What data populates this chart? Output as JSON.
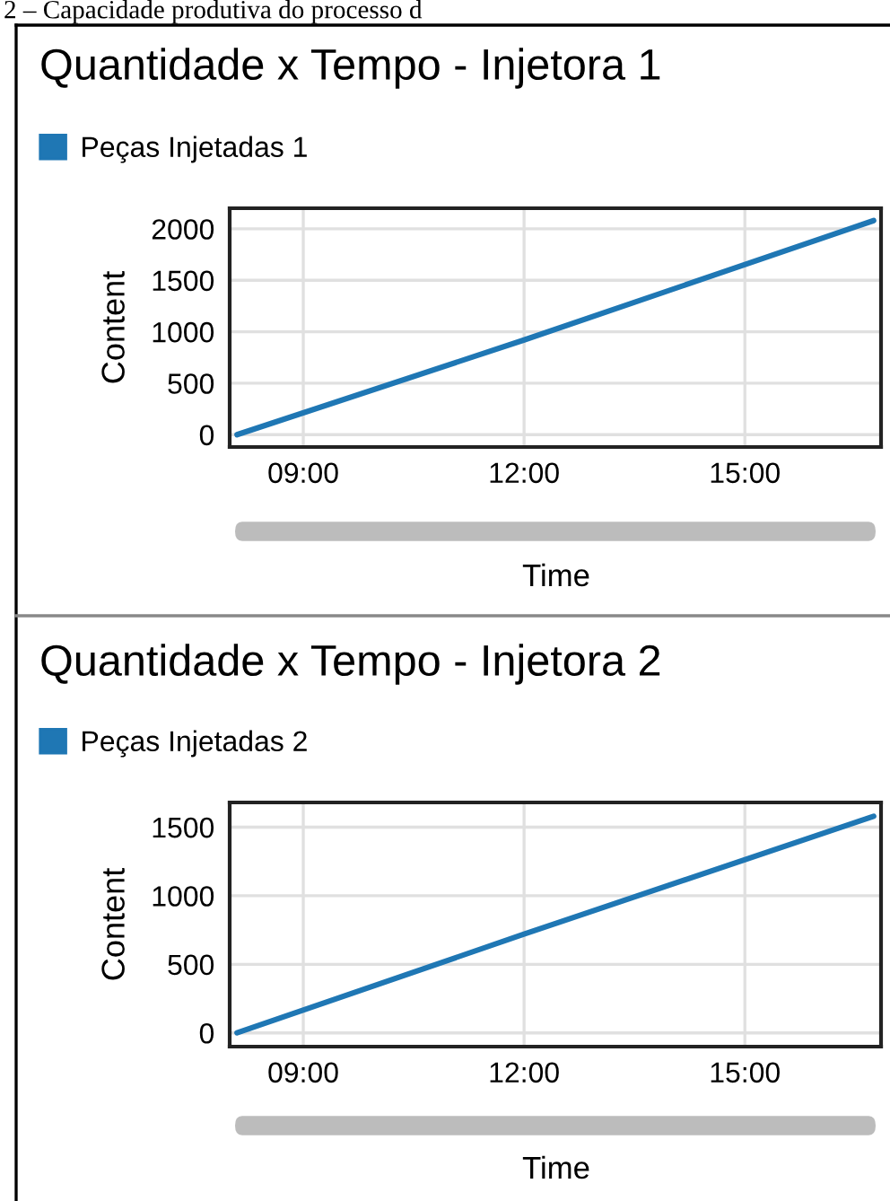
{
  "chart_data": [
    {
      "type": "line",
      "title": "Quantidade x Tempo - Injetora 1",
      "xlabel": "Time",
      "ylabel": "Content",
      "annotations": [
        "2 – Capacidade produtiva do processo d"
      ],
      "x": [
        8.1,
        12,
        16.75
      ],
      "series": [
        {
          "name": "Peças Injetadas 1",
          "color": "#1f77b4",
          "values": [
            0,
            920,
            2080
          ]
        }
      ],
      "xlim": [
        8.0,
        16.85
      ],
      "xticks": [
        {
          "value": 9,
          "label": "09:00"
        },
        {
          "value": 12,
          "label": "12:00"
        },
        {
          "value": 15,
          "label": "15:00"
        }
      ],
      "ylim": [
        -120,
        2200
      ],
      "yticks": [
        0,
        500,
        1000,
        1500,
        2000
      ],
      "grid": true,
      "legend": "top left",
      "marker": "none",
      "line_style": "solid"
    },
    {
      "type": "line",
      "title": "Quantidade x Tempo - Injetora 2",
      "xlabel": "Time",
      "ylabel": "Content",
      "x": [
        8.1,
        12,
        16.75
      ],
      "series": [
        {
          "name": "Peças Injetadas 2",
          "color": "#1f77b4",
          "values": [
            0,
            720,
            1580
          ]
        }
      ],
      "xlim": [
        8.0,
        16.85
      ],
      "xticks": [
        {
          "value": 9,
          "label": "09:00"
        },
        {
          "value": 12,
          "label": "12:00"
        },
        {
          "value": 15,
          "label": "15:00"
        }
      ],
      "ylim": [
        -100,
        1680
      ],
      "yticks": [
        0,
        500,
        1000,
        1500
      ],
      "grid": true,
      "legend": "top left",
      "marker": "none",
      "line_style": "solid"
    }
  ]
}
